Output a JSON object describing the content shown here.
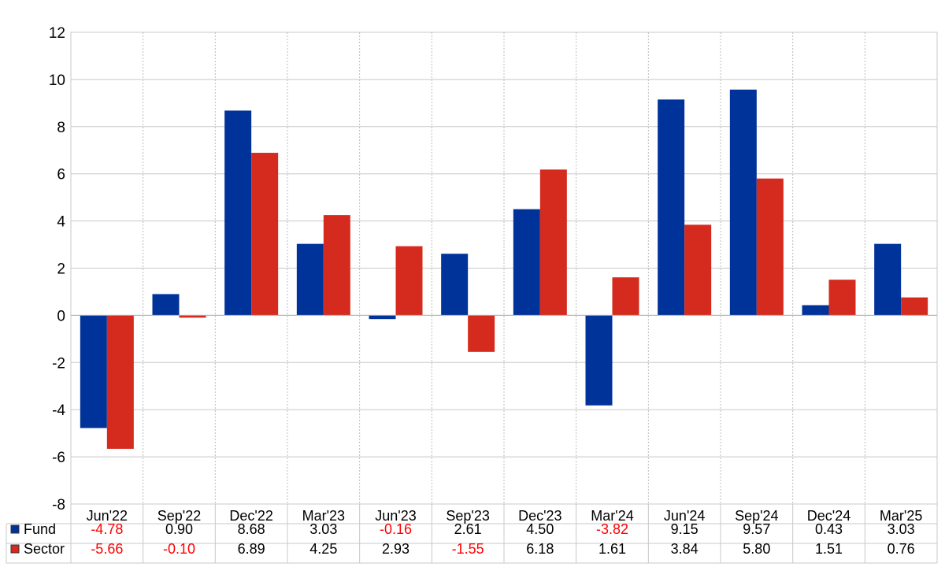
{
  "chart_data": {
    "type": "bar",
    "categories": [
      "Jun'22",
      "Sep'22",
      "Dec'22",
      "Mar'23",
      "Jun'23",
      "Sep'23",
      "Dec'23",
      "Mar'24",
      "Jun'24",
      "Sep'24",
      "Dec'24",
      "Mar'25"
    ],
    "series": [
      {
        "name": "Fund",
        "color": "#003399",
        "values": [
          -4.78,
          0.9,
          8.68,
          3.03,
          -0.16,
          2.61,
          4.5,
          -3.82,
          9.15,
          9.57,
          0.43,
          3.03
        ]
      },
      {
        "name": "Sector",
        "color": "#d52b1e",
        "values": [
          -5.66,
          -0.1,
          6.89,
          4.25,
          2.93,
          -1.55,
          6.18,
          1.61,
          3.84,
          5.8,
          1.51,
          0.76
        ]
      }
    ],
    "table_labels": {
      "Fund": [
        "-4.78",
        "0.90",
        "8.68",
        "3.03",
        "-0.16",
        "2.61",
        "4.50",
        "-3.82",
        "9.15",
        "9.57",
        "0.43",
        "3.03"
      ],
      "Sector": [
        "-5.66",
        "-0.10",
        "6.89",
        "4.25",
        "2.93",
        "-1.55",
        "6.18",
        "1.61",
        "3.84",
        "5.80",
        "1.51",
        "0.76"
      ]
    },
    "ylim": [
      -8,
      12
    ],
    "yticks": [
      12,
      10,
      8,
      6,
      4,
      2,
      0,
      -2,
      -4,
      -6,
      -8
    ],
    "title": "",
    "xlabel": "",
    "ylabel": "",
    "grid": true,
    "legend": "data table below chart",
    "negative_value_color": "#ff0000"
  }
}
